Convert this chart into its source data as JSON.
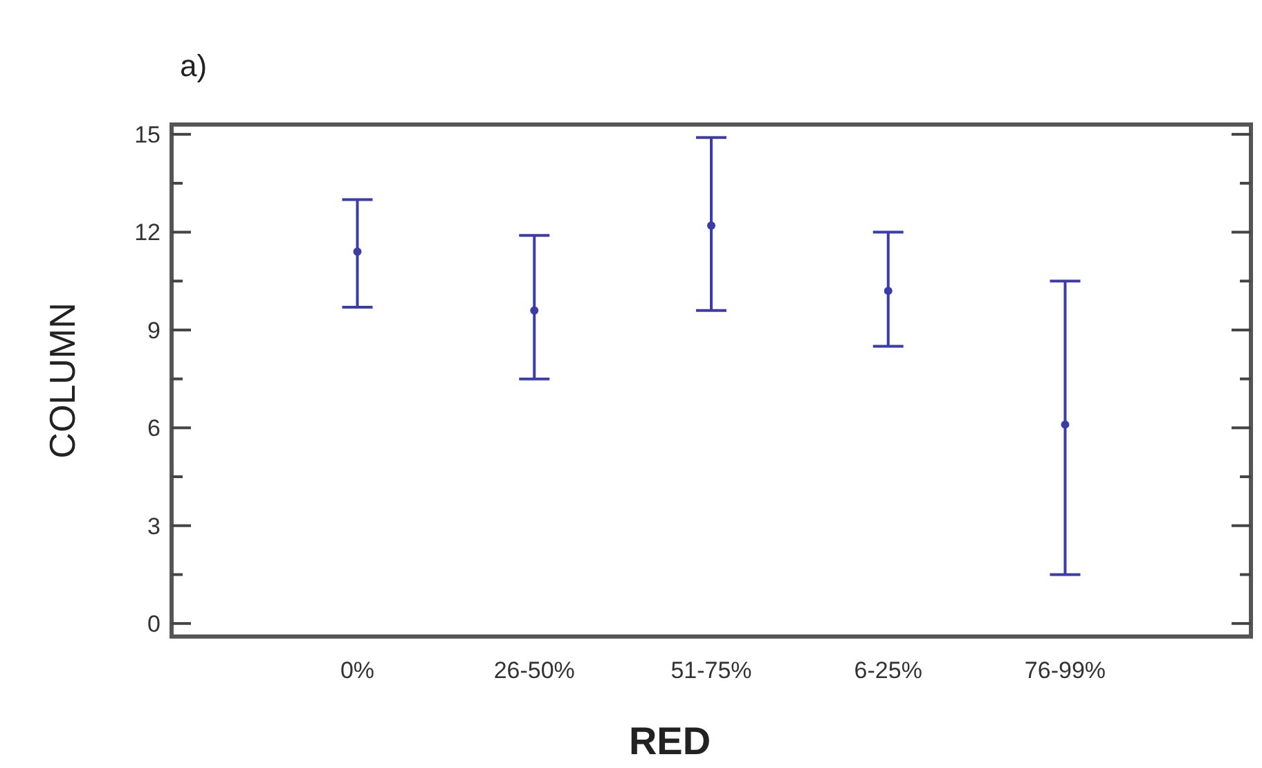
{
  "chart_data": {
    "type": "scatter",
    "xlabel": "RED",
    "ylabel": "COLUMN",
    "annotations": [
      "a)"
    ],
    "categories": [
      "0%",
      "26-50%",
      "51-75%",
      "6-25%",
      "76-99%"
    ],
    "series": [
      {
        "color": "#3c3ca8",
        "values": [
          11.4,
          9.6,
          12.2,
          10.2,
          6.1
        ],
        "errors": [
          [
            9.7,
            13
          ],
          [
            7.5,
            11.9
          ],
          [
            9.6,
            14.9
          ],
          [
            8.5,
            12
          ],
          [
            1.5,
            10.5
          ]
        ]
      }
    ],
    "ylim": [
      -0.4,
      15.3
    ],
    "yticks": [
      0,
      3,
      6,
      9,
      12,
      15
    ],
    "marker": "circle",
    "grid": false
  }
}
